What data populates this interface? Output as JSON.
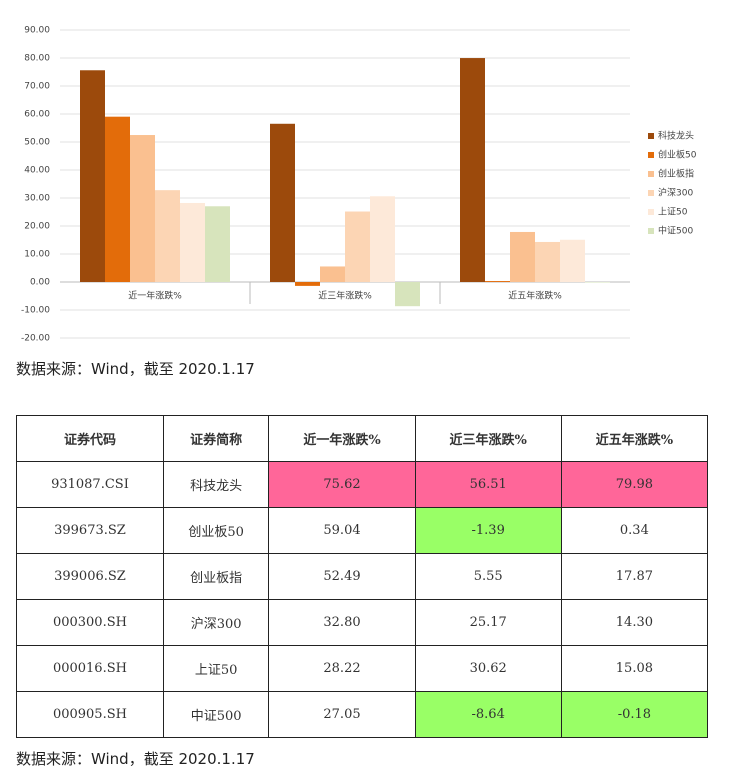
{
  "chart_data": {
    "type": "bar",
    "categories": [
      "近一年涨跌%",
      "近三年涨跌%",
      "近五年涨跌%"
    ],
    "series": [
      {
        "name": "科技龙头",
        "color": "#9c4a0c",
        "values": [
          75.62,
          56.51,
          79.98
        ]
      },
      {
        "name": "创业板50",
        "color": "#e36c0a",
        "values": [
          59.04,
          -1.39,
          0.34
        ]
      },
      {
        "name": "创业板指",
        "color": "#fac090",
        "values": [
          52.49,
          5.55,
          17.87
        ]
      },
      {
        "name": "沪深300",
        "color": "#fcd5b4",
        "values": [
          32.8,
          25.17,
          14.3
        ]
      },
      {
        "name": "上证50",
        "color": "#fde9d9",
        "values": [
          28.22,
          30.62,
          15.08
        ]
      },
      {
        "name": "中证500",
        "color": "#d7e4bc",
        "values": [
          27.05,
          -8.64,
          -0.18
        ]
      }
    ],
    "ylim": [
      -20,
      90
    ],
    "yticks": [
      {
        "value": -20,
        "label": "-20.00"
      },
      {
        "value": -10,
        "label": "-10.00"
      },
      {
        "value": 0,
        "label": "0.00"
      },
      {
        "value": 10,
        "label": "10.00"
      },
      {
        "value": 20,
        "label": "20.00"
      },
      {
        "value": 30,
        "label": "30.00"
      },
      {
        "value": 40,
        "label": "40.00"
      },
      {
        "value": 50,
        "label": "50.00"
      },
      {
        "value": 60,
        "label": "60.00"
      },
      {
        "value": 70,
        "label": "70.00"
      },
      {
        "value": 80,
        "label": "80.00"
      },
      {
        "value": 90,
        "label": "90.00"
      }
    ],
    "grid": true,
    "legend": "right",
    "source": "数据来源：Wind，截至 2020.1.17"
  },
  "table": {
    "header": [
      "证券代码",
      "证券简称",
      "近一年涨跌%",
      "近三年涨跌%",
      "近五年涨跌%"
    ],
    "rows": [
      [
        "931087.CSI",
        "科技龙头",
        "75.62",
        "56.51",
        "79.98"
      ],
      [
        "399673.SZ",
        "创业板50",
        "59.04",
        "-1.39",
        "0.34"
      ],
      [
        "399006.SZ",
        "创业板指",
        "52.49",
        "5.55",
        "17.87"
      ],
      [
        "000300.SH",
        "沪深300",
        "32.80",
        "25.17",
        "14.30"
      ],
      [
        "000016.SH",
        "上证50",
        "28.22",
        "30.62",
        "15.08"
      ],
      [
        "000905.SH",
        "中证500",
        "27.05",
        "-8.64",
        "-0.18"
      ]
    ],
    "source": "数据来源：Wind，截至 2020.1.17"
  }
}
